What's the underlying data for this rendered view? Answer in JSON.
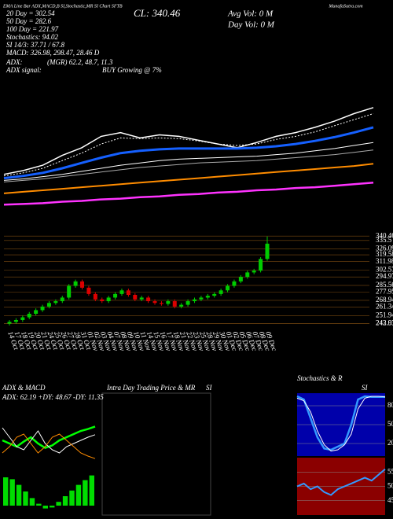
{
  "header": {
    "top_left": "EMA Line Bar ADX,MACD,B SI,Stochastic,MR SI Chart SFTB",
    "top_right": "MunafaSutra.com",
    "close": "CL: 340.46",
    "avg_vol": "Avg Vol: 0  M",
    "day_vol": "Day Vol: 0  M",
    "lines": [
      "20 Day = 302.54",
      "50 Day = 282.6",
      "100 Day = 221.97",
      "Stochastics: 94.02",
      "SI 14/3: 37.71 / 67.8",
      "MACD: 326.98, 298.47, 28.46  D"
    ],
    "adx_label": "ADX:",
    "adx_value": "(MGR) 62.2, 48.7, 11.3",
    "signal_label": "ADX  signal:",
    "signal_value": "BUY Growing @ 7%"
  },
  "intraday": {
    "title": "Intra Day Trading Price  & MR",
    "subtitle": "SI"
  },
  "chart_data": [
    {
      "type": "line",
      "ylim": [
        200,
        345
      ],
      "series": [
        {
          "color": "#ffffff",
          "width": 1.5,
          "values": [
            250,
            255,
            262,
            275,
            285,
            300,
            305,
            298,
            302,
            300,
            295,
            290,
            285,
            292,
            300,
            305,
            312,
            320,
            330,
            338
          ]
        },
        {
          "color": "#ffffff",
          "width": 1,
          "dash": true,
          "values": [
            248,
            252,
            258,
            268,
            278,
            290,
            298,
            297,
            298,
            297,
            294,
            290,
            288,
            290,
            296,
            300,
            306,
            314,
            322,
            330
          ]
        },
        {
          "color": "#1560ff",
          "width": 3,
          "values": [
            245,
            248,
            252,
            258,
            265,
            272,
            278,
            281,
            283,
            284,
            284,
            284,
            284,
            285,
            287,
            290,
            294,
            299,
            305,
            312
          ]
        },
        {
          "color": "#ffffff",
          "width": 1,
          "values": [
            242,
            244,
            247,
            250,
            254,
            258,
            262,
            265,
            268,
            270,
            271,
            272,
            273,
            274,
            276,
            278,
            281,
            284,
            288,
            292
          ]
        },
        {
          "color": "#aaaaaa",
          "width": 1,
          "values": [
            240,
            242,
            244,
            247,
            250,
            253,
            256,
            259,
            261,
            263,
            265,
            266,
            267,
            268,
            270,
            272,
            274,
            276,
            279,
            282
          ]
        },
        {
          "color": "#ff8c00",
          "width": 2,
          "values": [
            225,
            227,
            229,
            231,
            233,
            235,
            237,
            239,
            241,
            243,
            245,
            247,
            249,
            251,
            253,
            255,
            257,
            259,
            261,
            264
          ]
        },
        {
          "color": "#ff33ff",
          "width": 2.5,
          "values": [
            210,
            211,
            212,
            214,
            215,
            217,
            218,
            220,
            221,
            223,
            224,
            226,
            227,
            229,
            230,
            232,
            233,
            235,
            237,
            239
          ]
        }
      ]
    },
    {
      "type": "candlestick",
      "up_color": "#00cc00",
      "down_color": "#dd0000",
      "categories": [
        "14 Oct",
        "17 Oct",
        "18 Oct",
        "19 Oct",
        "20 Oct",
        "21 Oct",
        "24 Oct",
        "25 Oct",
        "26 Oct",
        "27 Oct",
        "28 Oct",
        "31 Oct",
        "01 Nov",
        "02 Nov",
        "03 Nov",
        "04 Nov",
        "07 Nov",
        "08 Nov",
        "09 Nov",
        "10 Nov",
        "11 Nov",
        "14 Nov",
        "15 Nov",
        "16 Nov",
        "17 Nov",
        "18 Nov",
        "21 Nov",
        "22 Nov",
        "23 Nov",
        "25 Nov",
        "28 Nov",
        "29 Nov",
        "30 Nov",
        "01 Dec",
        "02 Dec",
        "05 Dec",
        "06 Dec",
        "07 Dec",
        "08 Dec",
        "09 Dec"
      ],
      "open": [
        243,
        245,
        247,
        250,
        254,
        258,
        262,
        266,
        268,
        272,
        285,
        290,
        283,
        276,
        270,
        268,
        272,
        276,
        280,
        275,
        270,
        272,
        268,
        266,
        265,
        268,
        262,
        264,
        268,
        270,
        272,
        274,
        276,
        280,
        285,
        290,
        295,
        300,
        302,
        315
      ],
      "high": [
        247,
        249,
        252,
        256,
        260,
        264,
        268,
        270,
        274,
        287,
        292,
        292,
        285,
        278,
        272,
        274,
        278,
        282,
        282,
        277,
        274,
        274,
        270,
        268,
        270,
        270,
        266,
        270,
        272,
        274,
        276,
        278,
        282,
        287,
        292,
        297,
        302,
        304,
        317,
        340
      ],
      "low": [
        241,
        243,
        245,
        248,
        252,
        256,
        260,
        264,
        266,
        270,
        283,
        281,
        274,
        268,
        266,
        266,
        270,
        274,
        273,
        268,
        268,
        266,
        264,
        263,
        263,
        260,
        260,
        262,
        266,
        268,
        270,
        272,
        274,
        278,
        283,
        288,
        293,
        298,
        300,
        313
      ],
      "close": [
        245,
        247,
        250,
        254,
        258,
        262,
        266,
        268,
        272,
        285,
        290,
        283,
        276,
        270,
        268,
        272,
        276,
        280,
        275,
        270,
        272,
        268,
        266,
        265,
        268,
        262,
        264,
        268,
        270,
        272,
        274,
        276,
        280,
        285,
        290,
        295,
        300,
        302,
        315,
        332
      ],
      "ylim": [
        240,
        345
      ],
      "yticks": [
        340.46,
        335.5,
        326.09,
        319.58,
        311.98,
        302.57,
        294.97,
        285.56,
        277.95,
        268.94,
        261.34,
        251.94,
        243.03,
        242.93
      ]
    },
    {
      "type": "line",
      "title": "ADX  & MACD",
      "subtitle": "ADX: 62.19 +DY: 48.67 -DY: 11.35",
      "ylim": [
        0,
        100
      ],
      "series": [
        {
          "color": "#00ff00",
          "width": 2.5,
          "values": [
            40,
            35,
            30,
            38,
            45,
            35,
            28,
            32,
            40,
            45,
            50,
            55,
            58,
            62
          ]
        },
        {
          "color": "#ffffff",
          "width": 1,
          "values": [
            60,
            45,
            30,
            25,
            40,
            55,
            35,
            25,
            20,
            30,
            35,
            40,
            45,
            49
          ]
        },
        {
          "color": "#ff8c00",
          "width": 1,
          "values": [
            20,
            30,
            45,
            50,
            35,
            20,
            30,
            45,
            50,
            40,
            30,
            20,
            15,
            11
          ]
        }
      ]
    },
    {
      "type": "bar",
      "color": "#00dd00",
      "ylim": [
        -10,
        40
      ],
      "values": [
        30,
        28,
        22,
        15,
        8,
        2,
        -3,
        -2,
        4,
        10,
        16,
        22,
        27,
        32
      ]
    },
    {
      "type": "line",
      "title": "Stochastics & R",
      "subtitle": "SI",
      "background": "#0000aa",
      "ylim": [
        0,
        100
      ],
      "yticks": [
        80,
        50,
        20
      ],
      "series": [
        {
          "color": "#3399ff",
          "width": 2.5,
          "values": [
            95,
            90,
            60,
            30,
            12,
            10,
            15,
            20,
            50,
            90,
            95,
            94,
            94,
            94
          ]
        },
        {
          "color": "#ffffff",
          "width": 1,
          "values": [
            92,
            88,
            70,
            40,
            18,
            8,
            10,
            18,
            35,
            75,
            92,
            95,
            95,
            94
          ]
        }
      ]
    },
    {
      "type": "line",
      "background": "#8b0000",
      "ylim": [
        40,
        60
      ],
      "yticks": [
        55,
        50,
        45
      ],
      "series": [
        {
          "color": "#3399ff",
          "width": 2,
          "values": [
            50,
            51,
            49,
            50,
            48,
            47,
            49,
            50,
            51,
            52,
            53,
            52,
            54,
            56
          ]
        }
      ]
    }
  ]
}
